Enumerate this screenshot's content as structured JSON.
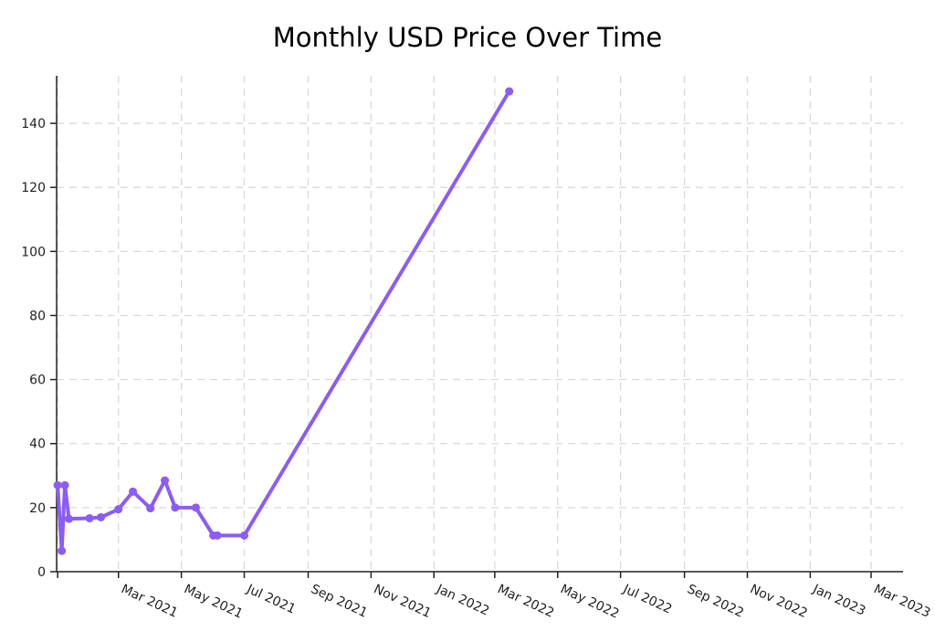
{
  "chart_data": {
    "type": "line",
    "title": "Monthly USD Price Over Time",
    "xlabel": "",
    "ylabel": "",
    "x": [
      "2021-01-01",
      "2021-01-05",
      "2021-01-08",
      "2021-01-12",
      "2021-02-01",
      "2021-02-12",
      "2021-03-01",
      "2021-03-15",
      "2021-04-01",
      "2021-04-15",
      "2021-04-25",
      "2021-05-15",
      "2021-06-01",
      "2021-06-05",
      "2021-07-01",
      "2022-03-15"
    ],
    "series": [
      {
        "name": "",
        "values": [
          27,
          6.5,
          27,
          16.5,
          16.7,
          17.0,
          19.5,
          25,
          19.8,
          28.5,
          20.0,
          20.0,
          11.3,
          11.3,
          11.3,
          150
        ]
      }
    ],
    "x_ticks": [
      "2021-01-01",
      "2021-03-01",
      "2021-05-01",
      "2021-07-01",
      "2021-09-01",
      "2021-11-01",
      "2022-01-01",
      "2022-03-01",
      "2022-05-01",
      "2022-07-01",
      "2022-09-01",
      "2022-11-01",
      "2023-01-01",
      "2023-03-01"
    ],
    "x_tick_labels": [
      "",
      "Mar 2021",
      "May 2021",
      "Jul 2021",
      "Sep 2021",
      "Nov 2021",
      "Jan 2022",
      "Mar 2022",
      "May 2022",
      "Jul 2022",
      "Sep 2022",
      "Nov 2022",
      "Jan 2023",
      "Mar 2023"
    ],
    "xlim": [
      "2020-12-31",
      "2023-04-01"
    ],
    "y_ticks": [
      0,
      20,
      40,
      60,
      80,
      100,
      120,
      140
    ],
    "ylim": [
      0,
      152
    ],
    "grid": true,
    "colors": {
      "line": "#8b5cf6",
      "grid": "#d9d9d9",
      "axis": "#222222"
    }
  }
}
